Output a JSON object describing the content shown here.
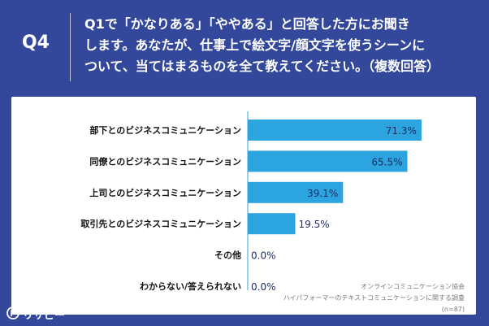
{
  "header": {
    "question_number": "Q4",
    "question_lines": [
      "Q1で「かなりある」「ややある」と回答した方にお聞き",
      "します。あなたが、仕事上で絵文字/顔文字を使うシーンに",
      "ついて、当てはまるものを全て教えてください。（複数回答）"
    ]
  },
  "colors": {
    "background": "#33489a",
    "bar": "#2ba4e0",
    "panel": "#ffffff"
  },
  "chart_data": {
    "type": "bar",
    "orientation": "horizontal",
    "categories": [
      "部下とのビジネスコミュニケーション",
      "同僚とのビジネスコミュニケーション",
      "上司とのビジネスコミュニケーション",
      "取引先とのビジネスコミュニケーション",
      "その他",
      "わからない/答えられない"
    ],
    "values": [
      71.3,
      65.5,
      39.1,
      19.5,
      0.0,
      0.0
    ],
    "value_labels": [
      "71.3%",
      "65.5%",
      "39.1%",
      "19.5%",
      "0.0%",
      "0.0%"
    ],
    "unit": "%",
    "xlim": [
      0,
      100
    ],
    "title": "",
    "xlabel": "",
    "ylabel": ""
  },
  "footnote": {
    "source_lines": [
      "オンラインコミュニケーション協会",
      "ハイパフォーマーのテキストコミュニケーションに関する調査",
      "(n=87)"
    ]
  },
  "logo": {
    "text": "リサピー",
    "icon": "speech-bubble-p-icon"
  }
}
